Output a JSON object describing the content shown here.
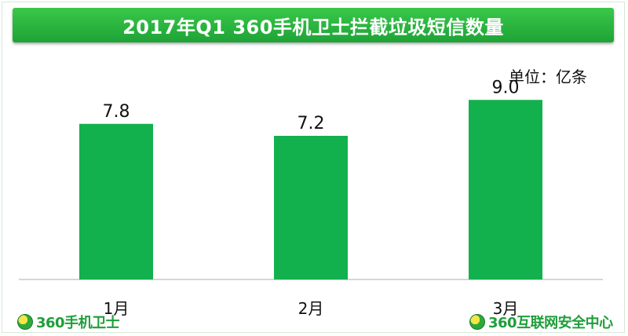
{
  "chart_data": {
    "type": "bar",
    "title": "2017年Q1 360手机卫士拦截垃圾短信数量",
    "unit_label": "单位：亿条",
    "categories": [
      "1月",
      "2月",
      "3月"
    ],
    "values": [
      7.8,
      7.2,
      9.0
    ],
    "value_labels": [
      "7.8",
      "7.2",
      "9.0"
    ],
    "ylim": [
      0,
      9.6
    ],
    "grid": false,
    "bar_color": "#12b14e"
  },
  "footer": {
    "left_logo": "360手机卫士",
    "right_logo": "360互联网安全中心",
    "logo_icon": "360-logo-icon"
  },
  "colors": {
    "title_bar": "#27b83e",
    "accent": "#12b14e"
  }
}
